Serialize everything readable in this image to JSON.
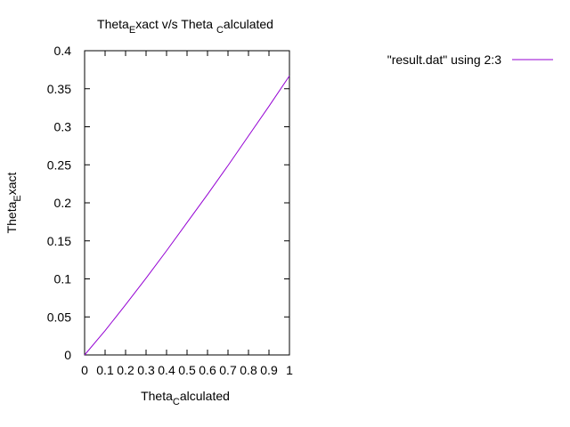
{
  "chart_data": {
    "type": "line",
    "title": {
      "main": "Theta",
      "sub1": "E",
      "mid": "xact v/s Theta ",
      "sub2": "C",
      "end": "alculated"
    },
    "xlabel": {
      "main": "Theta",
      "sub": "C",
      "end": "alculated"
    },
    "ylabel": {
      "main": "Theta",
      "sub": "E",
      "end": "xact"
    },
    "xlim": [
      0,
      1
    ],
    "ylim": [
      0,
      0.4
    ],
    "x_ticks": [
      0,
      0.1,
      0.2,
      0.3,
      0.4,
      0.5,
      0.6,
      0.7,
      0.8,
      0.9,
      1
    ],
    "x_tick_labels": [
      "0",
      "0.1",
      "0.2",
      "0.3",
      "0.4",
      "0.5",
      "0.6",
      "0.7",
      "0.8",
      "0.9",
      "1"
    ],
    "y_ticks": [
      0,
      0.05,
      0.1,
      0.15,
      0.2,
      0.25,
      0.3,
      0.35,
      0.4
    ],
    "y_tick_labels": [
      "0",
      "0.05",
      "0.1",
      "0.15",
      "0.2",
      "0.25",
      "0.3",
      "0.35",
      "0.4"
    ],
    "grid": false,
    "legend_position": "top-right, outside plot",
    "series": [
      {
        "name": "\"result.dat\" using 2:3",
        "color": "#9400d3",
        "x": [
          0,
          0.1,
          0.2,
          0.3,
          0.4,
          0.5,
          0.6,
          0.7,
          0.8,
          0.9,
          1.0
        ],
        "y": [
          0,
          0.032,
          0.066,
          0.101,
          0.137,
          0.174,
          0.211,
          0.249,
          0.288,
          0.327,
          0.367
        ]
      }
    ]
  }
}
